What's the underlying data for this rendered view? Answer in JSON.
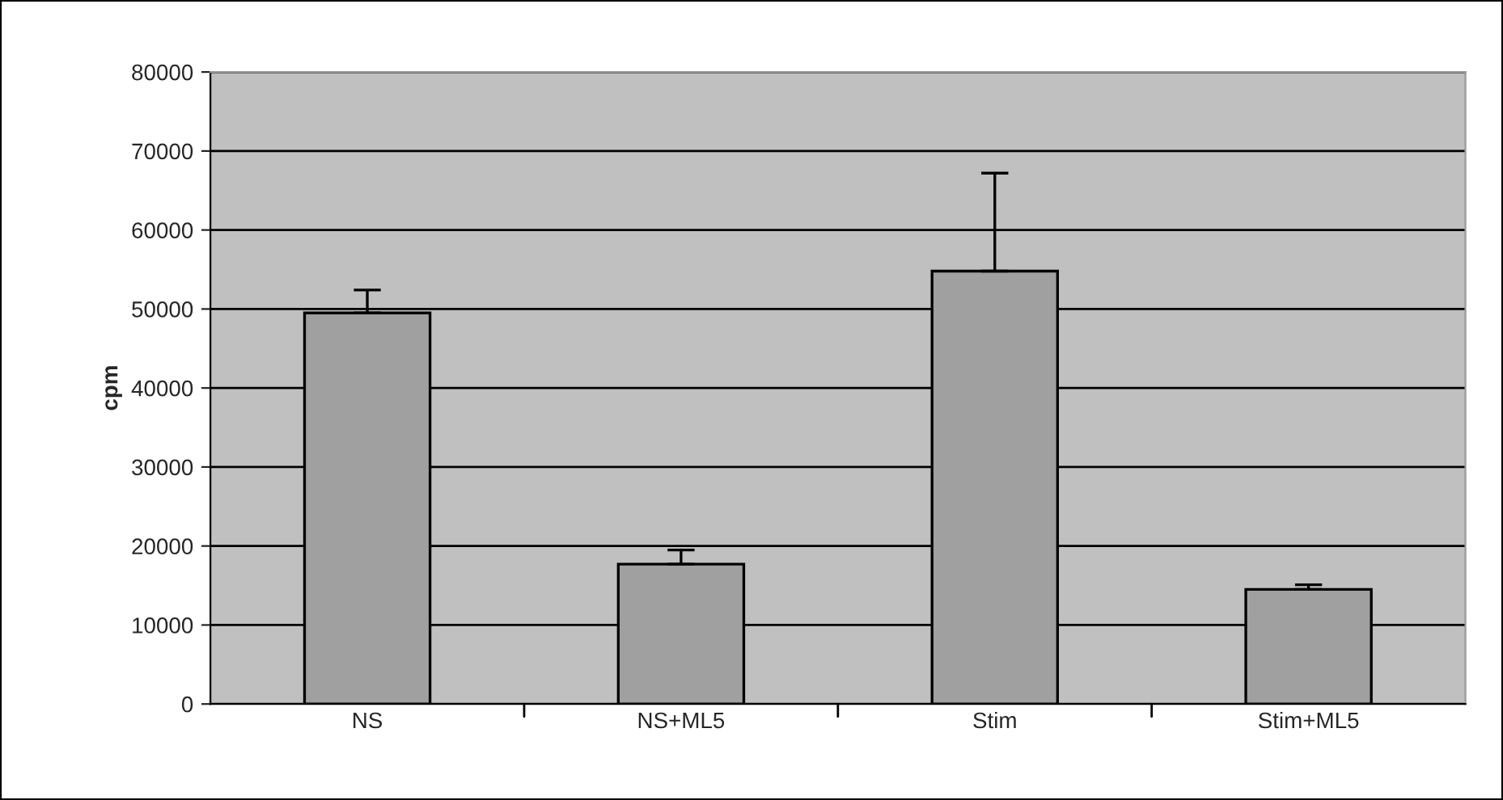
{
  "chart_data": {
    "type": "bar",
    "ylabel": "cpm",
    "categories": [
      "NS",
      "NS+ML5",
      "Stim",
      "Stim+ML5"
    ],
    "values": [
      49500,
      17700,
      54800,
      14500
    ],
    "errors": [
      [
        49500,
        52400
      ],
      [
        17700,
        19500
      ],
      [
        54800,
        67200
      ],
      [
        14500,
        15100
      ]
    ],
    "color": "#a0a0a0",
    "ylim": [
      0,
      80000
    ],
    "yticks": [
      0,
      10000,
      20000,
      30000,
      40000,
      50000,
      60000,
      70000,
      80000
    ],
    "grid": "y",
    "legend": false
  }
}
